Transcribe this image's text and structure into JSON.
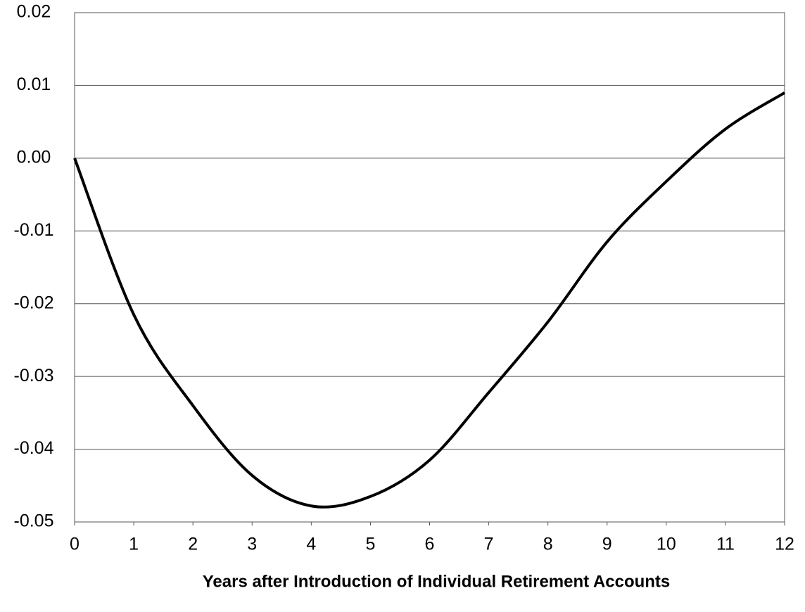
{
  "chart_data": {
    "type": "line",
    "x_label": "Years after Introduction of Individual Retirement Accounts",
    "x": [
      0,
      1,
      2,
      3,
      4,
      5,
      6,
      7,
      8,
      9,
      10,
      11,
      12
    ],
    "series": [
      {
        "color": "#000000",
        "values": [
          0,
          -0.0215,
          -0.034,
          -0.0436,
          -0.0478,
          -0.0465,
          -0.0415,
          -0.0322,
          -0.0225,
          -0.0115,
          -0.0032,
          0.004,
          0.009
        ]
      }
    ],
    "xlim": [
      0,
      12
    ],
    "xticks": [
      0,
      1,
      2,
      3,
      4,
      5,
      6,
      7,
      8,
      9,
      10,
      11,
      12
    ],
    "ylim": [
      -0.05,
      0.02
    ],
    "yticks": [
      -0.05,
      -0.04,
      -0.03,
      -0.02,
      -0.01,
      {
        "value": 0,
        "label": "0.00"
      },
      0.01,
      0.02
    ],
    "grid": true
  }
}
